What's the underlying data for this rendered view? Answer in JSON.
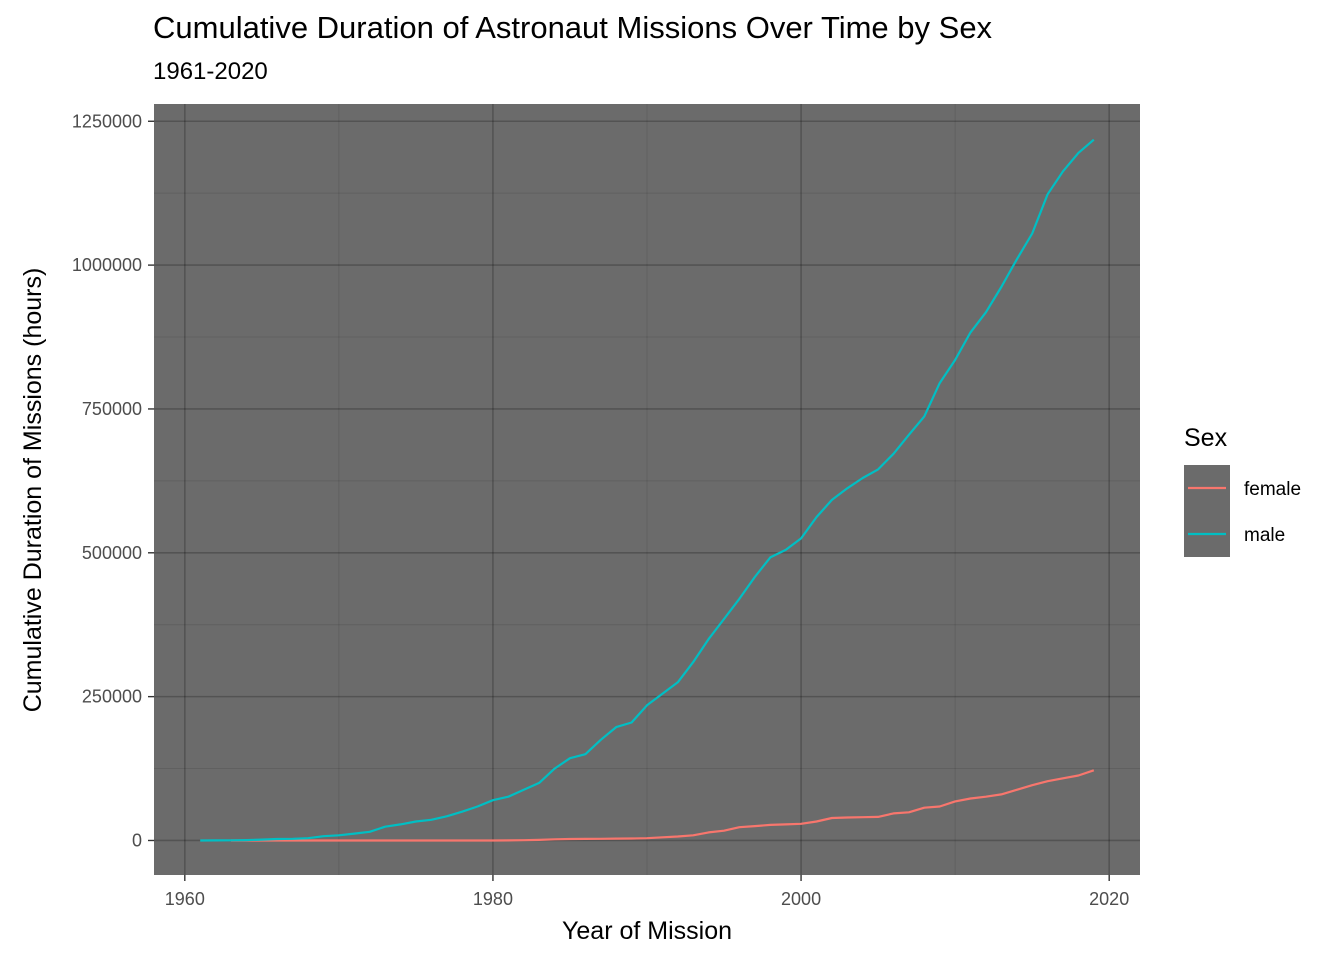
{
  "chart_data": {
    "type": "line",
    "title": "Cumulative Duration of Astronaut Missions Over Time by Sex",
    "subtitle": "1961-2020",
    "xlabel": "Year of Mission",
    "ylabel": "Cumulative Duration of Missions (hours)",
    "xlim": [
      1958,
      2022
    ],
    "ylim": [
      -60000,
      1280000
    ],
    "x_ticks": [
      1960,
      1980,
      2000,
      2020
    ],
    "y_ticks": [
      0,
      250000,
      500000,
      750000,
      1000000,
      1250000
    ],
    "x_tick_labels": [
      "1960",
      "1980",
      "2000",
      "2020"
    ],
    "y_tick_labels": [
      "0",
      "250000",
      "500000",
      "750000",
      "1000000",
      "1250000"
    ],
    "grid": true,
    "panel_background": "#6b6b6b",
    "legend": {
      "title": "Sex",
      "position": "right"
    },
    "series": [
      {
        "name": "female",
        "color": "#f8766d",
        "points": [
          [
            1963,
            0
          ],
          [
            1970,
            0
          ],
          [
            1975,
            0
          ],
          [
            1980,
            0
          ],
          [
            1982,
            500
          ],
          [
            1983,
            1000
          ],
          [
            1984,
            2000
          ],
          [
            1985,
            2500
          ],
          [
            1986,
            2800
          ],
          [
            1987,
            3000
          ],
          [
            1988,
            3200
          ],
          [
            1989,
            3500
          ],
          [
            1990,
            4000
          ],
          [
            1991,
            5500
          ],
          [
            1992,
            7000
          ],
          [
            1993,
            9000
          ],
          [
            1994,
            14000
          ],
          [
            1995,
            17000
          ],
          [
            1996,
            23000
          ],
          [
            1997,
            25000
          ],
          [
            1998,
            27000
          ],
          [
            1999,
            28000
          ],
          [
            2000,
            29000
          ],
          [
            2001,
            33000
          ],
          [
            2002,
            39000
          ],
          [
            2003,
            40000
          ],
          [
            2004,
            40500
          ],
          [
            2005,
            41000
          ],
          [
            2006,
            47000
          ],
          [
            2007,
            49000
          ],
          [
            2008,
            57000
          ],
          [
            2009,
            59000
          ],
          [
            2010,
            68000
          ],
          [
            2011,
            73000
          ],
          [
            2012,
            76000
          ],
          [
            2013,
            80000
          ],
          [
            2014,
            88000
          ],
          [
            2015,
            96000
          ],
          [
            2016,
            103000
          ],
          [
            2017,
            108000
          ],
          [
            2018,
            113000
          ],
          [
            2019,
            122000
          ]
        ]
      },
      {
        "name": "male",
        "color": "#00bfc4",
        "points": [
          [
            1961,
            0
          ],
          [
            1962,
            100
          ],
          [
            1963,
            300
          ],
          [
            1964,
            600
          ],
          [
            1965,
            1500
          ],
          [
            1966,
            2500
          ],
          [
            1967,
            3000
          ],
          [
            1968,
            4000
          ],
          [
            1969,
            7500
          ],
          [
            1970,
            9000
          ],
          [
            1971,
            12000
          ],
          [
            1972,
            15000
          ],
          [
            1973,
            24000
          ],
          [
            1974,
            28000
          ],
          [
            1975,
            33000
          ],
          [
            1976,
            36000
          ],
          [
            1977,
            42000
          ],
          [
            1978,
            50000
          ],
          [
            1979,
            59000
          ],
          [
            1980,
            70000
          ],
          [
            1981,
            76000
          ],
          [
            1982,
            88000
          ],
          [
            1983,
            100000
          ],
          [
            1984,
            125000
          ],
          [
            1985,
            143000
          ],
          [
            1986,
            150000
          ],
          [
            1987,
            175000
          ],
          [
            1988,
            197000
          ],
          [
            1989,
            205000
          ],
          [
            1990,
            235000
          ],
          [
            1991,
            255000
          ],
          [
            1992,
            275000
          ],
          [
            1993,
            310000
          ],
          [
            1994,
            350000
          ],
          [
            1995,
            385000
          ],
          [
            1996,
            420000
          ],
          [
            1997,
            458000
          ],
          [
            1998,
            492000
          ],
          [
            1999,
            505000
          ],
          [
            2000,
            525000
          ],
          [
            2001,
            562000
          ],
          [
            2002,
            592000
          ],
          [
            2003,
            612000
          ],
          [
            2004,
            630000
          ],
          [
            2005,
            645000
          ],
          [
            2006,
            672000
          ],
          [
            2007,
            705000
          ],
          [
            2008,
            737000
          ],
          [
            2009,
            795000
          ],
          [
            2010,
            835000
          ],
          [
            2011,
            883000
          ],
          [
            2012,
            918000
          ],
          [
            2013,
            962000
          ],
          [
            2014,
            1010000
          ],
          [
            2015,
            1055000
          ],
          [
            2016,
            1123000
          ],
          [
            2017,
            1163000
          ],
          [
            2018,
            1195000
          ],
          [
            2019,
            1218000
          ]
        ]
      }
    ]
  }
}
